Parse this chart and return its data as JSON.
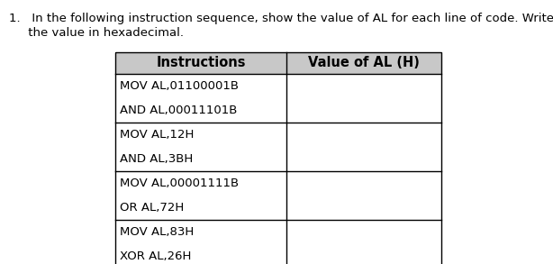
{
  "title_line1": "1.   In the following instruction sequence, show the value of AL for each line of code. Write",
  "title_line2": "     the value in hexadecimal.",
  "col_headers": [
    "Instructions",
    "Value of AL (H)"
  ],
  "row_groups": [
    [
      "MOV AL,01100001B",
      "AND AL,00011101B"
    ],
    [
      "MOV AL,12H",
      "AND AL,3BH"
    ],
    [
      "MOV AL,00001111B",
      "OR AL,72H"
    ],
    [
      "MOV AL,83H",
      "XOR AL,26H"
    ]
  ],
  "header_bg": "#c8c8c8",
  "table_bg": "#ffffff",
  "border_color": "#000000",
  "header_font_size": 10.5,
  "cell_font_size": 9.5,
  "fig_bg": "#ffffff"
}
